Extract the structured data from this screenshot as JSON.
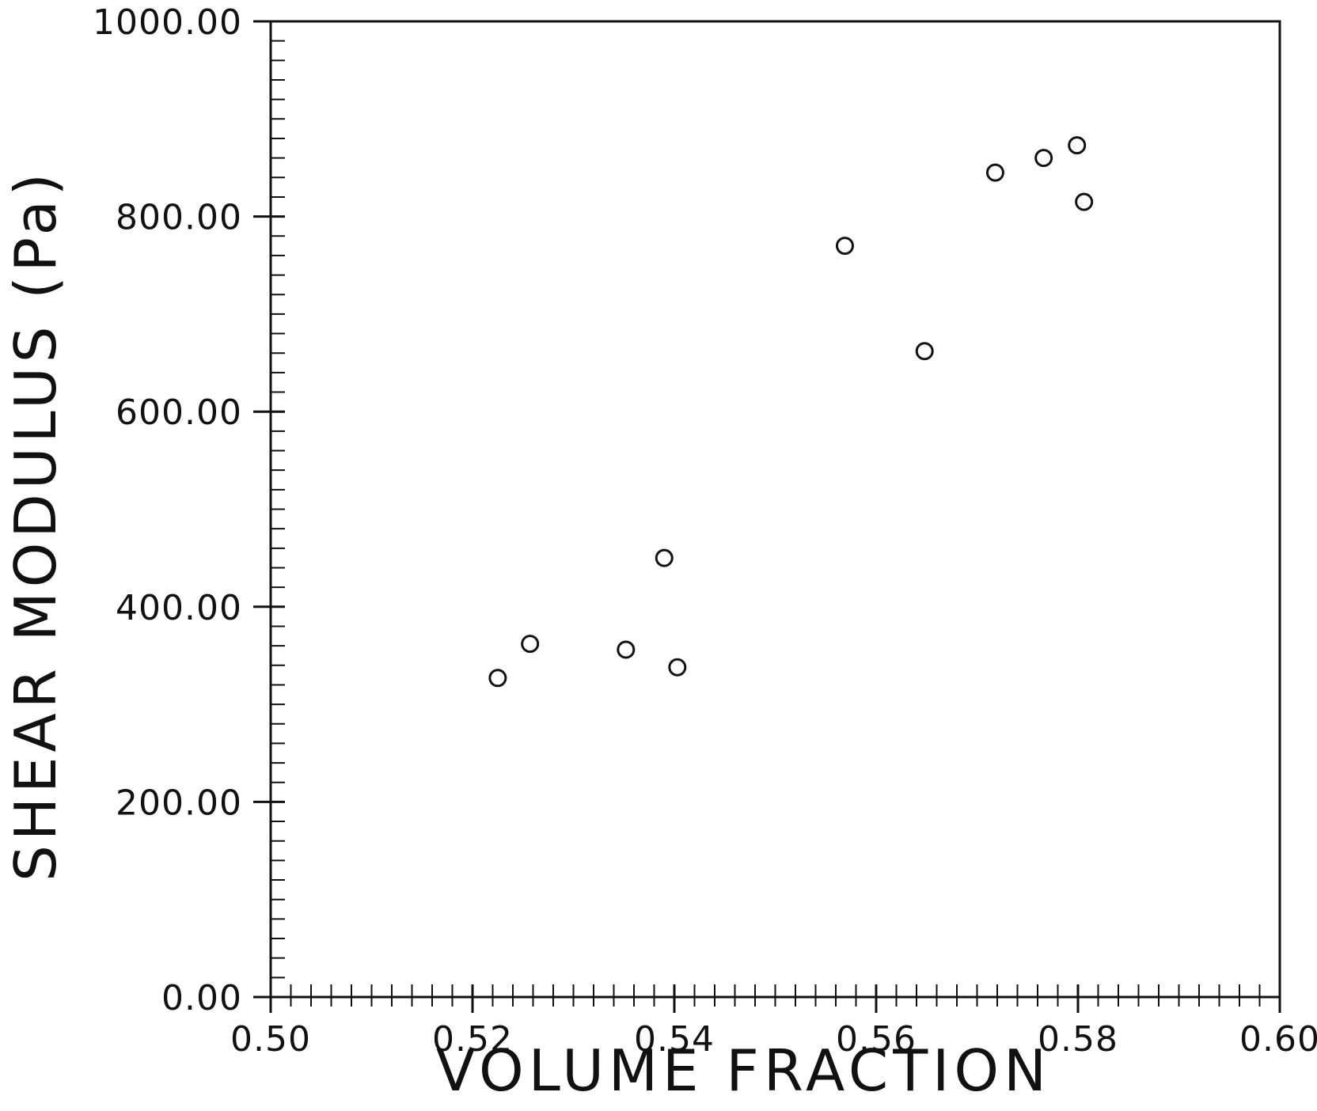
{
  "chart_data": {
    "type": "scatter",
    "title": "",
    "xlabel": "VOLUME FRACTION",
    "ylabel": "SHEAR MODULUS (Pa)",
    "xlim": [
      0.5,
      0.6
    ],
    "ylim": [
      0,
      1000
    ],
    "x_ticks": [
      "0.50",
      "0.52",
      "0.54",
      "0.56",
      "0.58",
      "0.60"
    ],
    "y_ticks": [
      "0.00",
      "200.00",
      "400.00",
      "600.00",
      "800.00",
      "1000.00"
    ],
    "marker": "open-circle",
    "grid": false,
    "legend": "none",
    "colors": {
      "ink": "#111111",
      "background": "#ffffff"
    },
    "points": [
      {
        "x": 0.5225,
        "y": 327
      },
      {
        "x": 0.5257,
        "y": 362
      },
      {
        "x": 0.5352,
        "y": 356
      },
      {
        "x": 0.539,
        "y": 450
      },
      {
        "x": 0.5403,
        "y": 338
      },
      {
        "x": 0.5569,
        "y": 770
      },
      {
        "x": 0.5648,
        "y": 662
      },
      {
        "x": 0.5718,
        "y": 845
      },
      {
        "x": 0.5766,
        "y": 860
      },
      {
        "x": 0.5799,
        "y": 873
      },
      {
        "x": 0.5806,
        "y": 815
      }
    ]
  }
}
